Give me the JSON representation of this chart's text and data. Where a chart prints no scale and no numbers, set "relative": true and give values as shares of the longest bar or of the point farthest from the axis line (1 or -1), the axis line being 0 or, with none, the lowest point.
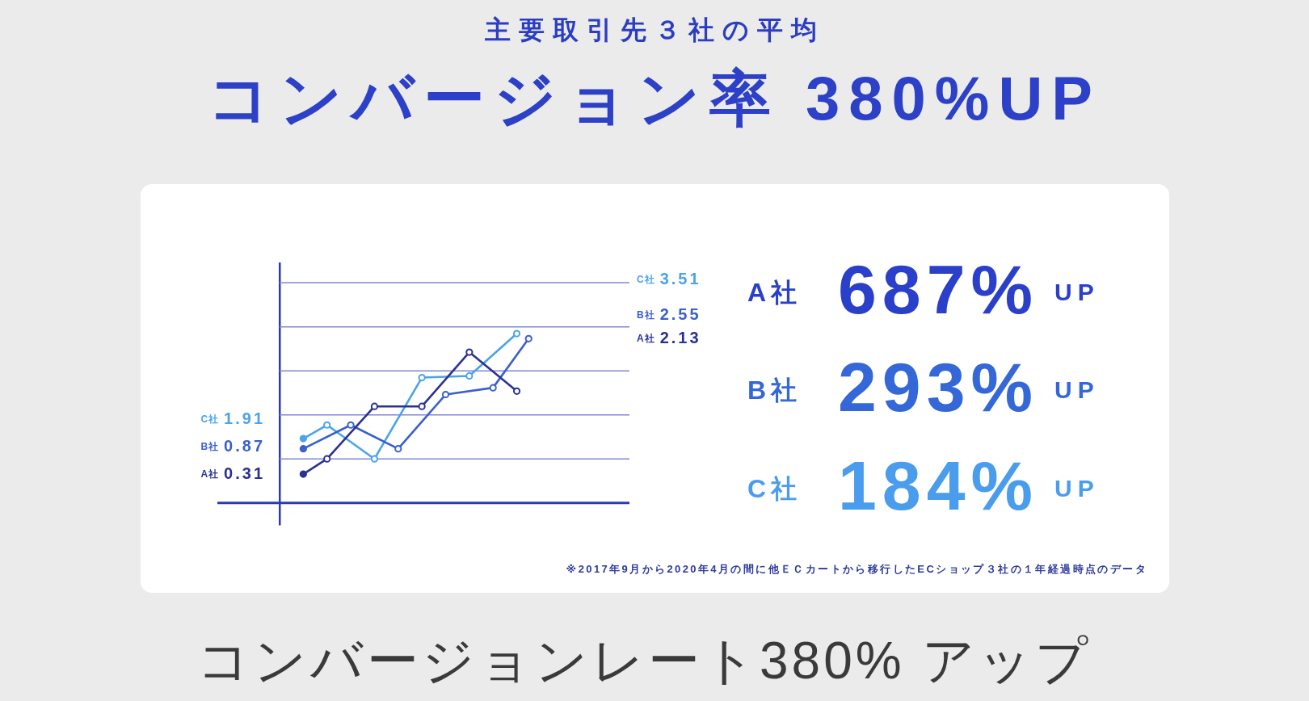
{
  "chart_data": [
    {
      "type": "line",
      "title": "主要取引先３社の平均",
      "subtitle": "コンバージョン率 380%UP",
      "relative": true,
      "marker": "circle",
      "categories": [
        null,
        null,
        null,
        null,
        null,
        null,
        null,
        null,
        null,
        null,
        null,
        null,
        null,
        null,
        null,
        null,
        null,
        null,
        null,
        null
      ],
      "series": [
        {
          "color": "#2b3193",
          "values": [
            0.17,
            null,
            0.26,
            null,
            null,
            null,
            0.57,
            null,
            null,
            null,
            0.57,
            null,
            null,
            null,
            0.89,
            null,
            null,
            null,
            0.66,
            null
          ]
        },
        {
          "color": "#3a60cc",
          "values": [
            0.32,
            null,
            null,
            null,
            0.46,
            null,
            null,
            null,
            0.32,
            null,
            null,
            null,
            0.64,
            null,
            null,
            null,
            0.68,
            null,
            null,
            0.97
          ]
        },
        {
          "color": "#4ba3e8",
          "values": [
            0.38,
            null,
            0.46,
            null,
            null,
            null,
            0.26,
            null,
            null,
            null,
            0.74,
            null,
            null,
            null,
            0.75,
            null,
            null,
            null,
            1,
            null
          ]
        }
      ],
      "ref_lines": [
        {
          "axis": "y",
          "value": 0.26,
          "color": "#8088d2"
        },
        {
          "axis": "y",
          "value": 0.52,
          "color": "#8088d2"
        },
        {
          "axis": "y",
          "value": 0.78,
          "color": "#8088d2"
        },
        {
          "axis": "y",
          "value": 1.04,
          "color": "#8088d2"
        },
        {
          "axis": "y",
          "value": 1.3,
          "color": "#8088d2"
        }
      ],
      "annotations": [
        "C社 1.91",
        "B社 0.87",
        "A社 0.31",
        "C社 3.51",
        "B社 2.55",
        "A社 2.13",
        "※2017年9月から2020年4月の間に他ＥＣカートから移行したECショップ３社の１年経過時点のデータ",
        "コンバージョンレート380% アップ"
      ]
    },
    {
      "type": "other",
      "annotations": [
        "A社",
        "687%",
        "UP",
        "B社",
        "293%",
        "UP",
        "C社",
        "184%",
        "UP"
      ],
      "colors": [
        "#2a3fca",
        "#3468d8",
        "#4a9dec"
      ]
    }
  ]
}
